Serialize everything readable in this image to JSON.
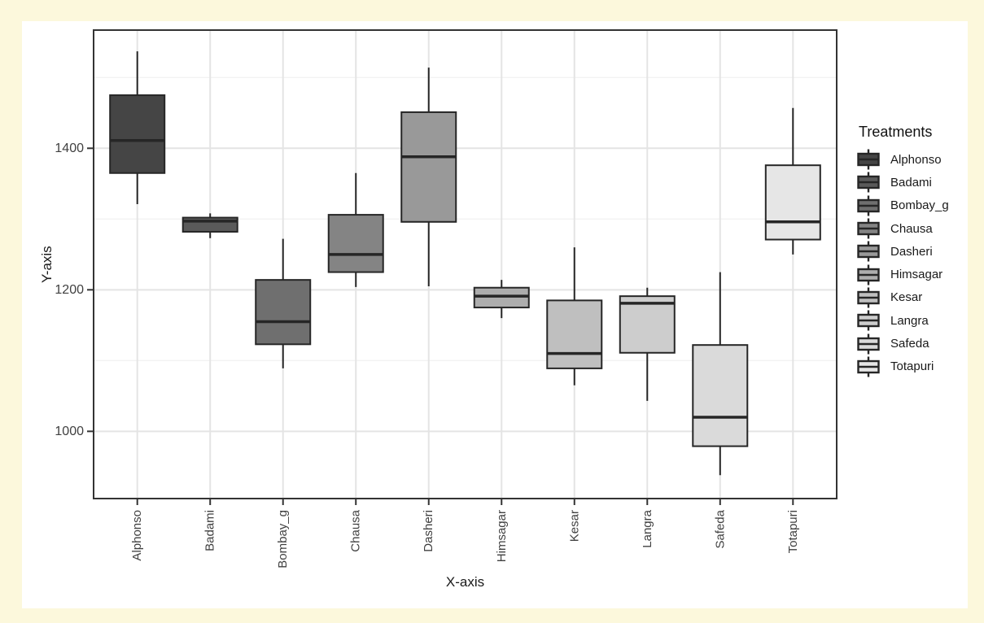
{
  "figure": {
    "outer_background": "#FCF8DC",
    "figure_background": "#FFFFFF",
    "panel_background": "#FFFFFF",
    "panel_border_color": "#333333",
    "gridline_major_color": "#E4E4E4",
    "gridline_minor_color": "#F2F2F2",
    "box_border_color": "#262626",
    "axis_text_color": "#404040",
    "axis_title_color": "#1A1A1A"
  },
  "axes": {
    "x_title": "X-axis",
    "y_title": "Y-axis"
  },
  "legend": {
    "title": "Treatments",
    "position": "right",
    "items": [
      {
        "label": "Alphonso",
        "fill": "#454545"
      },
      {
        "label": "Badami",
        "fill": "#5A5A5A"
      },
      {
        "label": "Bombay_g",
        "fill": "#6F6F6F"
      },
      {
        "label": "Chausa",
        "fill": "#848484"
      },
      {
        "label": "Dasheri",
        "fill": "#999999"
      },
      {
        "label": "Himsagar",
        "fill": "#ADADAD"
      },
      {
        "label": "Kesar",
        "fill": "#BFBFBF"
      },
      {
        "label": "Langra",
        "fill": "#CDCDCD"
      },
      {
        "label": "Safeda",
        "fill": "#DADADA"
      },
      {
        "label": "Totapuri",
        "fill": "#E6E6E6"
      }
    ]
  },
  "chart_data": {
    "type": "boxplot",
    "title": "",
    "xlabel": "X-axis",
    "ylabel": "Y-axis",
    "categories": [
      "Alphonso",
      "Badami",
      "Bombay_g",
      "Chausa",
      "Dasheri",
      "Himsagar",
      "Kesar",
      "Langra",
      "Safeda",
      "Totapuri"
    ],
    "ylim": [
      905,
      1567
    ],
    "yticks": [
      1000,
      1200,
      1400
    ],
    "yticks_minor": [
      1100,
      1300,
      1500
    ],
    "grid": true,
    "legend_position": "right",
    "series": [
      {
        "name": "Alphonso",
        "min": 1321,
        "q1": 1365,
        "median": 1411,
        "q3": 1475,
        "max": 1537,
        "fill": "#454545"
      },
      {
        "name": "Badami",
        "min": 1273,
        "q1": 1282,
        "median": 1297,
        "q3": 1302,
        "max": 1308,
        "fill": "#5A5A5A"
      },
      {
        "name": "Bombay_g",
        "min": 1089,
        "q1": 1123,
        "median": 1155,
        "q3": 1214,
        "max": 1272,
        "fill": "#6F6F6F"
      },
      {
        "name": "Chausa",
        "min": 1204,
        "q1": 1225,
        "median": 1250,
        "q3": 1306,
        "max": 1365,
        "fill": "#848484"
      },
      {
        "name": "Dasheri",
        "min": 1205,
        "q1": 1296,
        "median": 1388,
        "q3": 1451,
        "max": 1514,
        "fill": "#999999"
      },
      {
        "name": "Himsagar",
        "min": 1160,
        "q1": 1175,
        "median": 1191,
        "q3": 1203,
        "max": 1214,
        "fill": "#ADADAD"
      },
      {
        "name": "Kesar",
        "min": 1065,
        "q1": 1089,
        "median": 1110,
        "q3": 1185,
        "max": 1260,
        "fill": "#BFBFBF"
      },
      {
        "name": "Langra",
        "min": 1043,
        "q1": 1111,
        "median": 1181,
        "q3": 1191,
        "max": 1203,
        "fill": "#CDCDCD"
      },
      {
        "name": "Safeda",
        "min": 938,
        "q1": 979,
        "median": 1020,
        "q3": 1122,
        "max": 1225,
        "fill": "#DADADA"
      },
      {
        "name": "Totapuri",
        "min": 1250,
        "q1": 1271,
        "median": 1296,
        "q3": 1376,
        "max": 1457,
        "fill": "#E6E6E6"
      }
    ]
  }
}
